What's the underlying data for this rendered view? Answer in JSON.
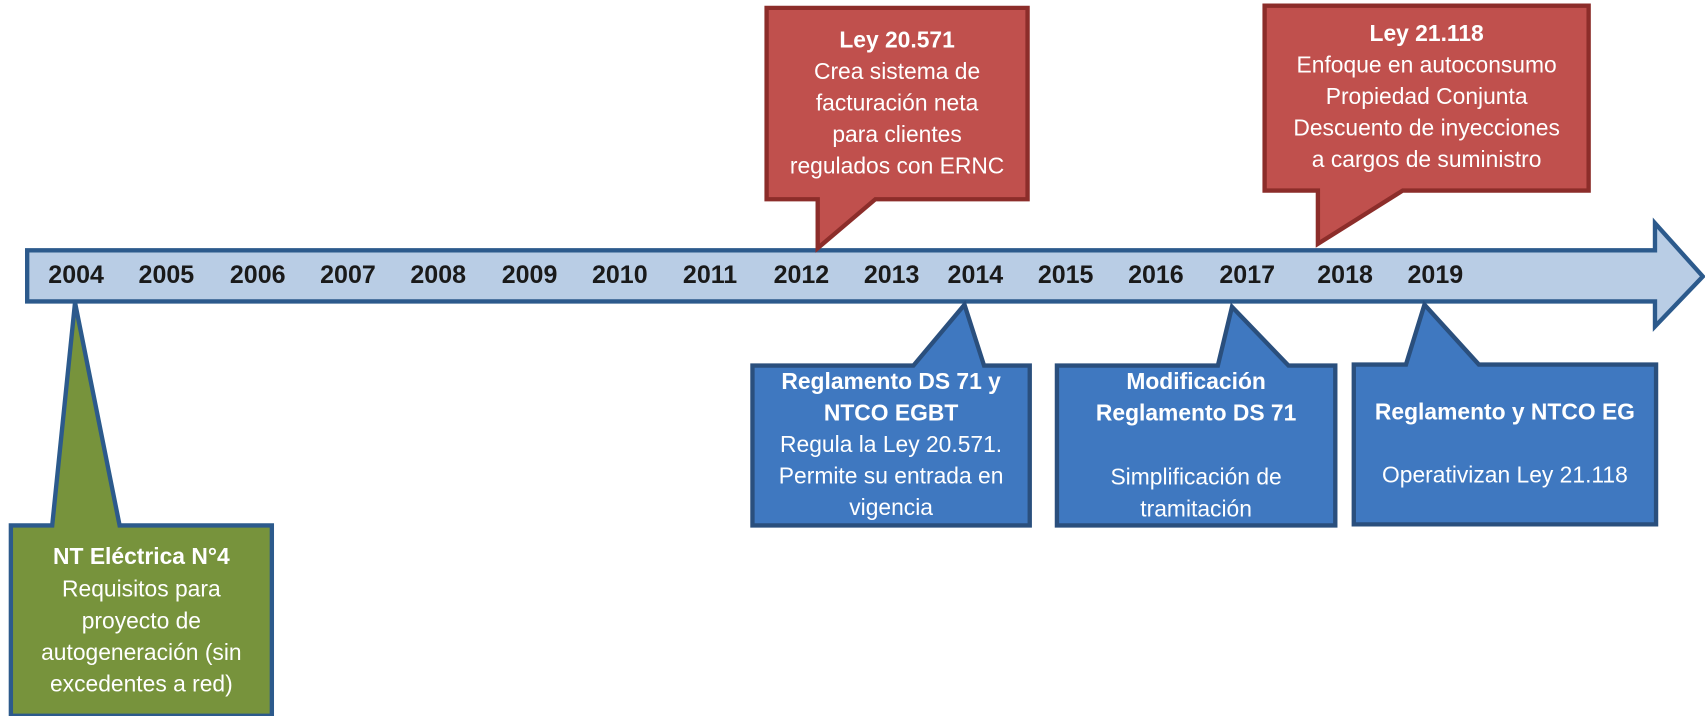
{
  "years": [
    "2004",
    "2005",
    "2006",
    "2007",
    "2008",
    "2009",
    "2010",
    "2011",
    "2012",
    "2013",
    "2014",
    "2015",
    "2016",
    "2017",
    "2018",
    "2019"
  ],
  "callouts": [
    {
      "title": [
        "Ley 20.571"
      ],
      "body": [
        "Crea sistema de",
        "facturación neta",
        "para clientes",
        "regulados con ERNC"
      ]
    },
    {
      "title": [
        "Ley 21.118"
      ],
      "body": [
        "Enfoque en autoconsumo",
        "Propiedad Conjunta",
        "Descuento de inyecciones",
        "a cargos de suministro"
      ]
    },
    {
      "title": [
        "Reglamento DS 71 y",
        "NTCO EGBT"
      ],
      "body": [
        "Regula la Ley 20.571.",
        "Permite su entrada en",
        "vigencia"
      ]
    },
    {
      "title": [
        "Modificación",
        "Reglamento DS 71"
      ],
      "body": [
        "Simplificación de",
        "tramitación"
      ]
    },
    {
      "title": [
        "Reglamento y NTCO EG"
      ],
      "body": [
        "Operativizan Ley 21.118"
      ]
    },
    {
      "title": [
        "NT Eléctrica N°4"
      ],
      "body": [
        "Requisitos para",
        "proyecto de",
        "autogeneración (sin",
        "excedentes a red)"
      ]
    }
  ]
}
